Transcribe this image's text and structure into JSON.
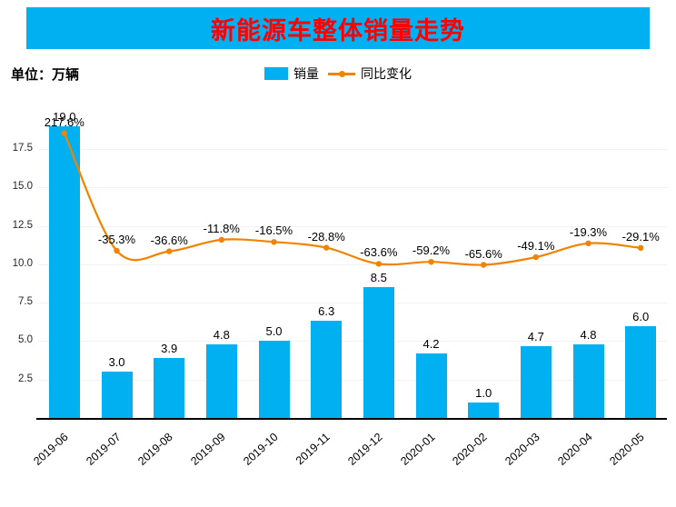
{
  "title": "新能源车整体销量走势",
  "unit_label": "单位：万辆",
  "colors": {
    "title_bg": "#00B0F0",
    "title_text": "#FF0000",
    "bar": "#00B0F0",
    "line": "#F08300",
    "label_text": "#000000"
  },
  "chart_data": {
    "type": "bar+line",
    "title": "新能源车整体销量走势",
    "unit": "万辆",
    "categories": [
      "2019-06",
      "2019-07",
      "2019-08",
      "2019-09",
      "2019-10",
      "2019-11",
      "2019-12",
      "2020-01",
      "2020-02",
      "2020-03",
      "2020-04",
      "2020-05"
    ],
    "series": [
      {
        "name": "销量",
        "type": "bar",
        "values": [
          19.0,
          3.0,
          3.9,
          4.8,
          5.0,
          6.3,
          8.5,
          4.2,
          1.0,
          4.7,
          4.8,
          6.0
        ],
        "labels": [
          "19.0",
          "3.0",
          "3.9",
          "4.8",
          "5.0",
          "6.3",
          "8.5",
          "4.2",
          "1.0",
          "4.7",
          "4.8",
          "6.0"
        ]
      },
      {
        "name": "同比变化",
        "type": "line",
        "values": [
          217.6,
          -35.3,
          -36.6,
          -11.8,
          -16.5,
          -28.8,
          -63.6,
          -59.2,
          -65.6,
          -49.1,
          -19.3,
          -29.1
        ],
        "labels": [
          "217.6%",
          "-35.3%",
          "-36.6%",
          "-11.8%",
          "-16.5%",
          "-28.8%",
          "-63.6%",
          "-59.2%",
          "-65.6%",
          "-49.1%",
          "-19.3%",
          "-29.1%"
        ]
      }
    ],
    "ylim": [
      0,
      19.5
    ],
    "yticks": [
      2.5,
      5.0,
      7.5,
      10.0,
      12.5,
      15.0,
      17.5
    ],
    "y2lim": [
      -395,
      250
    ],
    "grid": true,
    "legend_position": "top-center"
  }
}
